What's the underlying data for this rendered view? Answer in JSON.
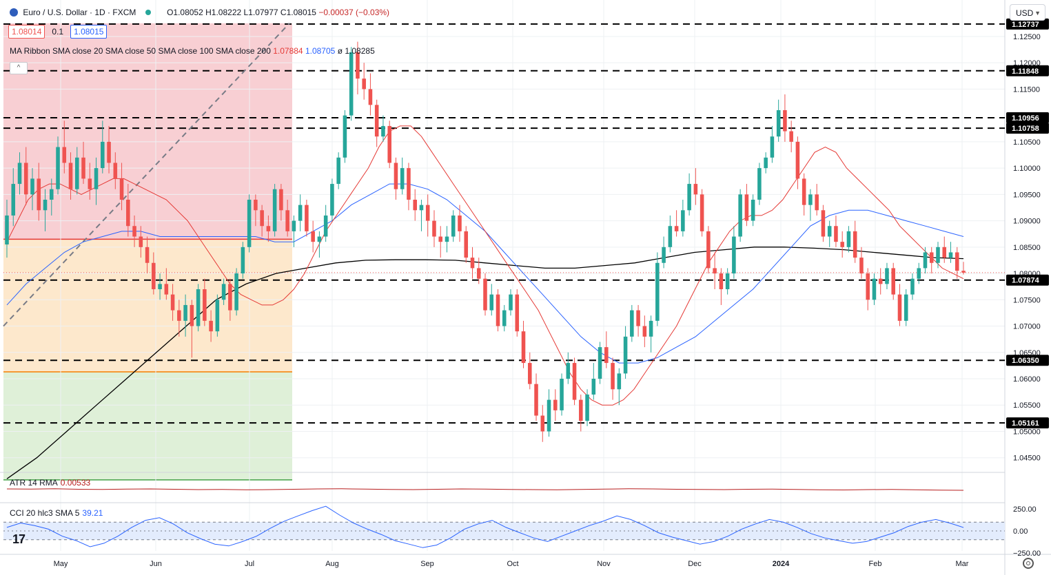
{
  "header": {
    "symbol": "Euro / U.S. Dollar · 1D · FXCM",
    "open": "O1.08052",
    "high": "H1.08222",
    "low": "L1.07977",
    "close": "C1.08015",
    "change": "−0.00037 (−0.03%)"
  },
  "quote": {
    "bid": "1.08014",
    "spread": "0.1",
    "ask": "1.08015"
  },
  "ma_ribbon": {
    "label": "MA Ribbon SMA close 20 SMA close 50 SMA close 100 SMA close 200",
    "v20": "1.07884",
    "v50": "1.08705",
    "v100": "ø",
    "v200": "1.08285"
  },
  "atr": {
    "label": "ATR 14 RMA",
    "value": "0.00533"
  },
  "cci": {
    "label": "CCI 20 hlc3 SMA 5",
    "value": "39.21"
  },
  "currency_button": "USD",
  "colors": {
    "up": "#26a69a",
    "down": "#ef5350",
    "sma20": "#e53935",
    "sma50": "#2962ff",
    "sma200": "#000000",
    "atr": "#b71c1c",
    "cci": "#2962ff"
  },
  "chart_data": {
    "type": "candlestick",
    "title": "Euro / U.S. Dollar · 1D · FXCM",
    "price_axis_ticks": [
      "1.12500",
      "1.12000",
      "1.11500",
      "1.10500",
      "1.10000",
      "1.09500",
      "1.09000",
      "1.08500",
      "1.08000",
      "1.07500",
      "1.07000",
      "1.06500",
      "1.06000",
      "1.05500",
      "1.05000",
      "1.04500"
    ],
    "price_axis_range": [
      1.043,
      1.128
    ],
    "cci_axis_ticks": [
      "250.00",
      "0.00",
      "−250.00"
    ],
    "x_axis_labels": [
      "May",
      "Jun",
      "Jul",
      "Aug",
      "Sep",
      "Oct",
      "Nov",
      "Dec",
      "2024",
      "Feb",
      "Mar"
    ],
    "horizontal_levels": [
      {
        "value": 1.12737,
        "label": "1.12737"
      },
      {
        "value": 1.11848,
        "label": "1.11848"
      },
      {
        "value": 1.10956,
        "label": "1.10956"
      },
      {
        "value": 1.10758,
        "label": "1.10758"
      },
      {
        "value": 1.07874,
        "label": "1.07874"
      },
      {
        "value": 1.0635,
        "label": "1.06350"
      },
      {
        "value": 1.05161,
        "label": "1.05161"
      }
    ],
    "fib_zones": [
      {
        "from": 1.1275,
        "to": 1.0865,
        "color": "#f8cfd3"
      },
      {
        "from": 1.0865,
        "to": 1.0613,
        "color": "#fde8cc"
      },
      {
        "from": 1.0613,
        "to": 1.0408,
        "color": "#dff0d8"
      }
    ],
    "last_close": 1.08015,
    "candles_ohlc": [
      [
        1.0855,
        1.094,
        1.083,
        1.091
      ],
      [
        1.091,
        1.1,
        1.089,
        1.097
      ],
      [
        1.097,
        1.103,
        1.095,
        1.101
      ],
      [
        1.101,
        1.104,
        1.093,
        1.095
      ],
      [
        1.095,
        1.1,
        1.092,
        1.098
      ],
      [
        1.098,
        1.101,
        1.09,
        1.092
      ],
      [
        1.092,
        1.096,
        1.088,
        1.094
      ],
      [
        1.094,
        1.098,
        1.091,
        1.096
      ],
      [
        1.096,
        1.106,
        1.095,
        1.104
      ],
      [
        1.104,
        1.109,
        1.099,
        1.101
      ],
      [
        1.101,
        1.103,
        1.094,
        1.096
      ],
      [
        1.096,
        1.104,
        1.095,
        1.102
      ],
      [
        1.102,
        1.105,
        1.097,
        1.098
      ],
      [
        1.098,
        1.101,
        1.094,
        1.096
      ],
      [
        1.096,
        1.102,
        1.093,
        1.1
      ],
      [
        1.1,
        1.109,
        1.099,
        1.105
      ],
      [
        1.105,
        1.108,
        1.099,
        1.101
      ],
      [
        1.101,
        1.103,
        1.096,
        1.098
      ],
      [
        1.098,
        1.101,
        1.092,
        1.094
      ],
      [
        1.094,
        1.097,
        1.087,
        1.089
      ],
      [
        1.089,
        1.091,
        1.085,
        1.087
      ],
      [
        1.087,
        1.089,
        1.083,
        1.085
      ],
      [
        1.085,
        1.087,
        1.08,
        1.082
      ],
      [
        1.082,
        1.084,
        1.076,
        1.077
      ],
      [
        1.077,
        1.08,
        1.075,
        1.078
      ],
      [
        1.078,
        1.081,
        1.075,
        1.076
      ],
      [
        1.076,
        1.078,
        1.071,
        1.073
      ],
      [
        1.073,
        1.075,
        1.068,
        1.071
      ],
      [
        1.071,
        1.076,
        1.068,
        1.074
      ],
      [
        1.074,
        1.075,
        1.064,
        1.07
      ],
      [
        1.07,
        1.078,
        1.069,
        1.077
      ],
      [
        1.077,
        1.079,
        1.07,
        1.071
      ],
      [
        1.071,
        1.073,
        1.067,
        1.069
      ],
      [
        1.069,
        1.076,
        1.068,
        1.075
      ],
      [
        1.075,
        1.079,
        1.074,
        1.078
      ],
      [
        1.078,
        1.079,
        1.071,
        1.073
      ],
      [
        1.073,
        1.081,
        1.072,
        1.08
      ],
      [
        1.08,
        1.086,
        1.079,
        1.085
      ],
      [
        1.085,
        1.095,
        1.084,
        1.094
      ],
      [
        1.094,
        1.095,
        1.089,
        1.092
      ],
      [
        1.092,
        1.093,
        1.087,
        1.089
      ],
      [
        1.089,
        1.091,
        1.086,
        1.088
      ],
      [
        1.088,
        1.097,
        1.087,
        1.096
      ],
      [
        1.096,
        1.097,
        1.09,
        1.092
      ],
      [
        1.092,
        1.094,
        1.087,
        1.088
      ],
      [
        1.088,
        1.091,
        1.085,
        1.09
      ],
      [
        1.09,
        1.095,
        1.088,
        1.093
      ],
      [
        1.093,
        1.094,
        1.087,
        1.088
      ],
      [
        1.088,
        1.09,
        1.084,
        1.086
      ],
      [
        1.086,
        1.088,
        1.083,
        1.087
      ],
      [
        1.087,
        1.093,
        1.086,
        1.091
      ],
      [
        1.091,
        1.098,
        1.09,
        1.097
      ],
      [
        1.097,
        1.103,
        1.096,
        1.102
      ],
      [
        1.102,
        1.111,
        1.101,
        1.11
      ],
      [
        1.11,
        1.123,
        1.109,
        1.122
      ],
      [
        1.122,
        1.124,
        1.114,
        1.117
      ],
      [
        1.117,
        1.12,
        1.113,
        1.115
      ],
      [
        1.115,
        1.118,
        1.11,
        1.112
      ],
      [
        1.112,
        1.113,
        1.104,
        1.106
      ],
      [
        1.106,
        1.11,
        1.105,
        1.108
      ],
      [
        1.108,
        1.109,
        1.1,
        1.101
      ],
      [
        1.101,
        1.102,
        1.094,
        1.096
      ],
      [
        1.096,
        1.102,
        1.095,
        1.1
      ],
      [
        1.1,
        1.101,
        1.092,
        1.094
      ],
      [
        1.094,
        1.096,
        1.09,
        1.092
      ],
      [
        1.092,
        1.094,
        1.088,
        1.093
      ],
      [
        1.093,
        1.095,
        1.087,
        1.09
      ],
      [
        1.09,
        1.092,
        1.085,
        1.087
      ],
      [
        1.087,
        1.089,
        1.083,
        1.086
      ],
      [
        1.086,
        1.089,
        1.084,
        1.087
      ],
      [
        1.087,
        1.092,
        1.086,
        1.091
      ],
      [
        1.091,
        1.093,
        1.086,
        1.088
      ],
      [
        1.088,
        1.089,
        1.082,
        1.083
      ],
      [
        1.083,
        1.085,
        1.079,
        1.081
      ],
      [
        1.081,
        1.083,
        1.078,
        1.079
      ],
      [
        1.079,
        1.08,
        1.072,
        1.073
      ],
      [
        1.073,
        1.078,
        1.072,
        1.076
      ],
      [
        1.076,
        1.077,
        1.069,
        1.07
      ],
      [
        1.07,
        1.074,
        1.069,
        1.073
      ],
      [
        1.073,
        1.077,
        1.072,
        1.076
      ],
      [
        1.076,
        1.077,
        1.068,
        1.069
      ],
      [
        1.069,
        1.071,
        1.062,
        1.063
      ],
      [
        1.063,
        1.065,
        1.058,
        1.059
      ],
      [
        1.059,
        1.061,
        1.052,
        1.053
      ],
      [
        1.053,
        1.055,
        1.048,
        1.05
      ],
      [
        1.05,
        1.058,
        1.049,
        1.056
      ],
      [
        1.056,
        1.058,
        1.052,
        1.054
      ],
      [
        1.054,
        1.061,
        1.053,
        1.06
      ],
      [
        1.06,
        1.065,
        1.059,
        1.063
      ],
      [
        1.063,
        1.064,
        1.055,
        1.056
      ],
      [
        1.056,
        1.057,
        1.05,
        1.052
      ],
      [
        1.052,
        1.058,
        1.051,
        1.057
      ],
      [
        1.057,
        1.063,
        1.056,
        1.06
      ],
      [
        1.06,
        1.067,
        1.059,
        1.066
      ],
      [
        1.066,
        1.069,
        1.062,
        1.063
      ],
      [
        1.063,
        1.064,
        1.056,
        1.058
      ],
      [
        1.058,
        1.062,
        1.055,
        1.061
      ],
      [
        1.061,
        1.07,
        1.06,
        1.068
      ],
      [
        1.068,
        1.074,
        1.067,
        1.073
      ],
      [
        1.073,
        1.074,
        1.068,
        1.07
      ],
      [
        1.07,
        1.072,
        1.066,
        1.068
      ],
      [
        1.068,
        1.072,
        1.065,
        1.071
      ],
      [
        1.071,
        1.084,
        1.07,
        1.082
      ],
      [
        1.082,
        1.087,
        1.081,
        1.085
      ],
      [
        1.085,
        1.091,
        1.084,
        1.089
      ],
      [
        1.089,
        1.092,
        1.087,
        1.088
      ],
      [
        1.088,
        1.094,
        1.087,
        1.092
      ],
      [
        1.092,
        1.099,
        1.091,
        1.097
      ],
      [
        1.097,
        1.1,
        1.093,
        1.095
      ],
      [
        1.095,
        1.096,
        1.087,
        1.088
      ],
      [
        1.088,
        1.089,
        1.08,
        1.081
      ],
      [
        1.081,
        1.084,
        1.077,
        1.08
      ],
      [
        1.08,
        1.081,
        1.074,
        1.077
      ],
      [
        1.077,
        1.081,
        1.076,
        1.08
      ],
      [
        1.08,
        1.089,
        1.079,
        1.087
      ],
      [
        1.087,
        1.096,
        1.086,
        1.095
      ],
      [
        1.095,
        1.097,
        1.089,
        1.09
      ],
      [
        1.09,
        1.095,
        1.089,
        1.094
      ],
      [
        1.094,
        1.101,
        1.093,
        1.1
      ],
      [
        1.1,
        1.103,
        1.099,
        1.102
      ],
      [
        1.102,
        1.108,
        1.101,
        1.106
      ],
      [
        1.106,
        1.113,
        1.105,
        1.111
      ],
      [
        1.111,
        1.114,
        1.105,
        1.107
      ],
      [
        1.107,
        1.109,
        1.103,
        1.105
      ],
      [
        1.105,
        1.106,
        1.096,
        1.098
      ],
      [
        1.098,
        1.099,
        1.091,
        1.093
      ],
      [
        1.093,
        1.096,
        1.09,
        1.095
      ],
      [
        1.095,
        1.097,
        1.091,
        1.092
      ],
      [
        1.092,
        1.093,
        1.086,
        1.087
      ],
      [
        1.087,
        1.09,
        1.085,
        1.089
      ],
      [
        1.089,
        1.091,
        1.085,
        1.086
      ],
      [
        1.086,
        1.088,
        1.083,
        1.085
      ],
      [
        1.085,
        1.089,
        1.084,
        1.088
      ],
      [
        1.088,
        1.09,
        1.082,
        1.083
      ],
      [
        1.083,
        1.085,
        1.079,
        1.08
      ],
      [
        1.08,
        1.081,
        1.073,
        1.075
      ],
      [
        1.075,
        1.08,
        1.074,
        1.079
      ],
      [
        1.079,
        1.081,
        1.076,
        1.078
      ],
      [
        1.078,
        1.082,
        1.077,
        1.081
      ],
      [
        1.081,
        1.082,
        1.075,
        1.076
      ],
      [
        1.076,
        1.078,
        1.07,
        1.071
      ],
      [
        1.071,
        1.077,
        1.07,
        1.076
      ],
      [
        1.076,
        1.08,
        1.075,
        1.079
      ],
      [
        1.079,
        1.082,
        1.078,
        1.081
      ],
      [
        1.081,
        1.085,
        1.08,
        1.084
      ],
      [
        1.084,
        1.085,
        1.08,
        1.082
      ],
      [
        1.082,
        1.086,
        1.081,
        1.085
      ],
      [
        1.085,
        1.087,
        1.082,
        1.083
      ],
      [
        1.083,
        1.086,
        1.082,
        1.084
      ],
      [
        1.084,
        1.085,
        1.079,
        1.0805
      ],
      [
        1.0805,
        1.0822,
        1.0798,
        1.08015
      ]
    ],
    "sma20": [
      1.086,
      1.09,
      1.094,
      1.096,
      1.097,
      1.097,
      1.096,
      1.095,
      1.096,
      1.097,
      1.098,
      1.098,
      1.097,
      1.096,
      1.095,
      1.094,
      1.092,
      1.09,
      1.087,
      1.084,
      1.081,
      1.078,
      1.076,
      1.075,
      1.074,
      1.074,
      1.075,
      1.077,
      1.08,
      1.084,
      1.088,
      1.091,
      1.094,
      1.097,
      1.1,
      1.104,
      1.107,
      1.108,
      1.108,
      1.106,
      1.103,
      1.1,
      1.097,
      1.094,
      1.091,
      1.088,
      1.085,
      1.082,
      1.079,
      1.076,
      1.073,
      1.069,
      1.065,
      1.061,
      1.058,
      1.056,
      1.055,
      1.055,
      1.056,
      1.058,
      1.061,
      1.064,
      1.067,
      1.07,
      1.074,
      1.078,
      1.082,
      1.085,
      1.088,
      1.09,
      1.091,
      1.091,
      1.092,
      1.094,
      1.097,
      1.1,
      1.103,
      1.104,
      1.103,
      1.1,
      1.098,
      1.096,
      1.094,
      1.092,
      1.089,
      1.087,
      1.085,
      1.083,
      1.081,
      1.08,
      1.079
    ],
    "sma50": [
      1.074,
      1.078,
      1.081,
      1.084,
      1.086,
      1.087,
      1.088,
      1.088,
      1.087,
      1.087,
      1.087,
      1.087,
      1.087,
      1.087,
      1.086,
      1.086,
      1.088,
      1.09,
      1.093,
      1.095,
      1.097,
      1.097,
      1.096,
      1.094,
      1.091,
      1.088,
      1.084,
      1.08,
      1.076,
      1.072,
      1.068,
      1.065,
      1.063,
      1.063,
      1.064,
      1.066,
      1.068,
      1.071,
      1.074,
      1.077,
      1.081,
      1.085,
      1.089,
      1.091,
      1.092,
      1.092,
      1.091,
      1.09,
      1.089,
      1.088,
      1.087
    ],
    "sma200": [
      1.041,
      1.045,
      1.05,
      1.055,
      1.06,
      1.065,
      1.07,
      1.075,
      1.078,
      1.08,
      1.081,
      1.082,
      1.0825,
      1.0826,
      1.0826,
      1.0825,
      1.082,
      1.0815,
      1.081,
      1.081,
      1.0815,
      1.082,
      1.083,
      1.084,
      1.0845,
      1.085,
      1.085,
      1.0848,
      1.0845,
      1.084,
      1.0835,
      1.083,
      1.0828
    ],
    "atr_series": [
      0.0061,
      0.006,
      0.0062,
      0.0059,
      0.0058,
      0.006,
      0.0061,
      0.0059,
      0.0057,
      0.0058,
      0.0056,
      0.0057,
      0.0059,
      0.0061,
      0.0062,
      0.006,
      0.0058,
      0.0057,
      0.0059,
      0.0061,
      0.006,
      0.0058,
      0.0057,
      0.0056,
      0.0058,
      0.006,
      0.0062,
      0.0061,
      0.0059,
      0.0058,
      0.0057,
      0.0059,
      0.006,
      0.0058,
      0.0056,
      0.0055,
      0.0057,
      0.0058,
      0.0056,
      0.0054,
      0.0053
    ],
    "cci_series": [
      40,
      90,
      60,
      20,
      -60,
      -110,
      -180,
      -140,
      -60,
      40,
      120,
      150,
      80,
      -20,
      -90,
      -150,
      -170,
      -120,
      -60,
      30,
      110,
      170,
      230,
      280,
      180,
      90,
      20,
      -40,
      -110,
      -150,
      -190,
      -160,
      -80,
      20,
      80,
      120,
      40,
      -20,
      -80,
      -120,
      -60,
      0,
      60,
      110,
      170,
      130,
      60,
      -20,
      -70,
      -110,
      -150,
      -120,
      -60,
      20,
      80,
      130,
      100,
      40,
      -30,
      -80,
      -110,
      -140,
      -120,
      -70,
      -20,
      50,
      100,
      130,
      90,
      39
    ]
  }
}
